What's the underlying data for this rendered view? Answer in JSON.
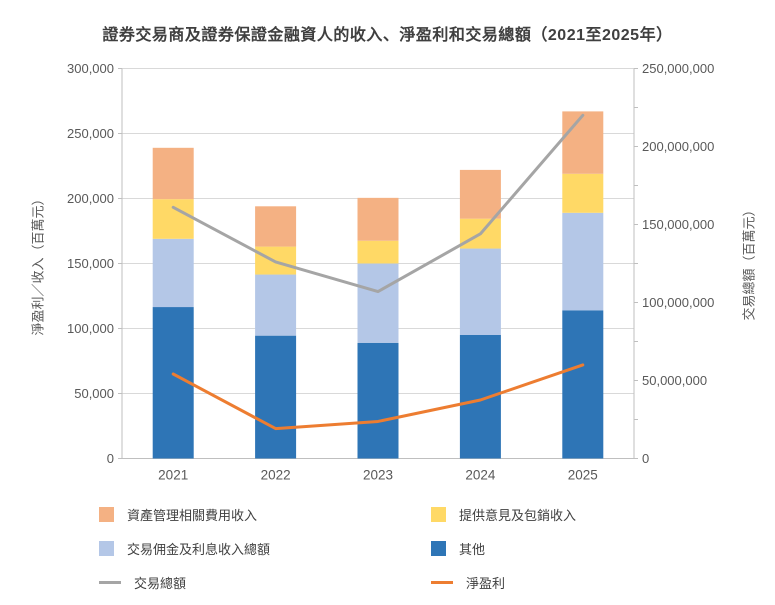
{
  "title": "證券交易商及證券保證金融資人的收入、淨盈利和交易總額（2021至2025年）",
  "colors": {
    "grid": "#d9d9d9",
    "axis": "#bfbfbf",
    "tick_text": "#595959",
    "title_text": "#3f3f3f",
    "bar_dark_blue": "#2e75b6",
    "bar_light_blue": "#b4c7e7",
    "bar_yellow": "#ffd966",
    "bar_orange": "#f4b183",
    "line_gray": "#a5a5a5",
    "line_orange": "#ed7d31"
  },
  "chart_data": {
    "type": "combo-stacked-bar-with-lines",
    "categories": [
      "2021",
      "2022",
      "2023",
      "2024",
      "2025"
    ],
    "bar_series": [
      {
        "name": "其他",
        "color": "#2e75b6",
        "values": [
          116500,
          94500,
          89000,
          95000,
          114000
        ]
      },
      {
        "name": "交易佣金及利息收入總額",
        "color": "#b4c7e7",
        "values": [
          52500,
          47000,
          61000,
          66500,
          75000
        ]
      },
      {
        "name": "提供意見及包銷收入",
        "color": "#ffd966",
        "values": [
          30500,
          21500,
          17500,
          23000,
          30000
        ]
      },
      {
        "name": "資產管理相關費用收入",
        "color": "#f4b183",
        "values": [
          39500,
          31000,
          33000,
          37500,
          48000
        ]
      }
    ],
    "line_series": [
      {
        "name": "交易總額",
        "axis": "right",
        "color": "#a5a5a5",
        "values": [
          161000000,
          126000000,
          107000000,
          144000000,
          220000000
        ]
      },
      {
        "name": "淨盈利",
        "axis": "left",
        "color": "#ed7d31",
        "values": [
          65000,
          23000,
          28500,
          45000,
          72000
        ]
      }
    ],
    "left_axis": {
      "title": "淨盈利／收入（百萬元）",
      "min": 0,
      "max": 300000,
      "step": 50000,
      "tick_labels": [
        "0",
        "50,000",
        "100,000",
        "150,000",
        "200,000",
        "250,000",
        "300,000"
      ]
    },
    "right_axis": {
      "title": "交易總額（百萬元）",
      "min": 0,
      "max": 250000000,
      "step": 50000000,
      "minor_step": 25000000,
      "tick_labels": [
        "0",
        "50,000,000",
        "100,000,000",
        "150,000,000",
        "200,000,000",
        "250,000,000"
      ]
    },
    "grid": true,
    "legend_position": "bottom"
  },
  "legend": {
    "items": [
      {
        "label": "資產管理相關費用收入",
        "shape": "square",
        "color": "#f4b183"
      },
      {
        "label": "提供意見及包銷收入",
        "shape": "square",
        "color": "#ffd966"
      },
      {
        "label": "交易佣金及利息收入總額",
        "shape": "square",
        "color": "#b4c7e7"
      },
      {
        "label": "其他",
        "shape": "square",
        "color": "#2e75b6"
      },
      {
        "label": "交易總額",
        "shape": "line",
        "color": "#a5a5a5"
      },
      {
        "label": "淨盈利",
        "shape": "line",
        "color": "#ed7d31"
      }
    ]
  }
}
